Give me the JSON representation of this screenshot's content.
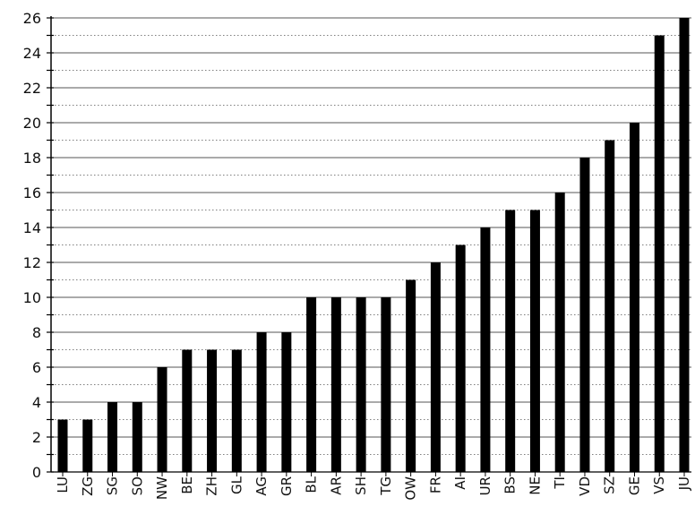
{
  "chart_data": {
    "type": "bar",
    "title": "",
    "xlabel": "",
    "ylabel": "",
    "categories": [
      "LU",
      "ZG",
      "SG",
      "SO",
      "NW",
      "BE",
      "ZH",
      "GL",
      "AG",
      "GR",
      "BL",
      "AR",
      "SH",
      "TG",
      "OW",
      "FR",
      "AI",
      "UR",
      "BS",
      "NE",
      "TI",
      "VD",
      "SZ",
      "GE",
      "VS",
      "JU"
    ],
    "values": [
      3,
      3,
      4,
      4,
      6,
      7,
      7,
      7,
      8,
      8,
      10,
      10,
      10,
      10,
      11,
      12,
      13,
      14,
      15,
      15,
      16,
      18,
      19,
      20,
      25,
      26
    ],
    "ylim": [
      0,
      26
    ],
    "y_ticks": [
      0,
      2,
      4,
      6,
      8,
      10,
      12,
      14,
      16,
      18,
      20,
      22,
      24,
      26
    ],
    "grid": true,
    "bar_color": "#000000",
    "grid_color": "#555555"
  }
}
